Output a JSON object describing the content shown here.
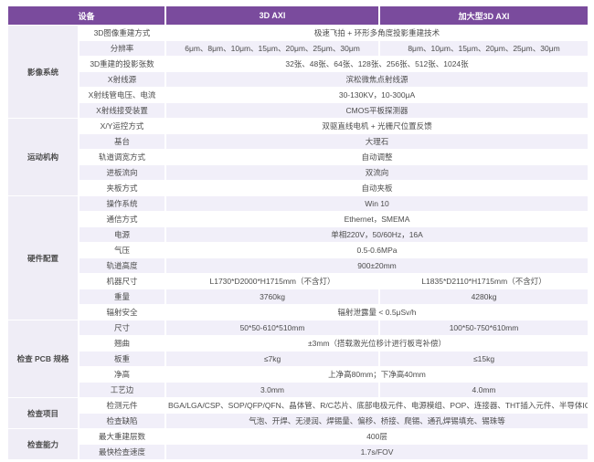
{
  "colors": {
    "header_bg": "#7a4b9d",
    "row_alt_bg": "#f1eff9",
    "category_bg": "#efedf6"
  },
  "table": {
    "header": {
      "col_device": "设备",
      "col_standard": "3D AXI",
      "col_large": "加大型3D AXI"
    },
    "sections": [
      {
        "category": "影像系统",
        "rows": [
          {
            "label": "3D图像重建方式",
            "value": "极速飞拍 + 环形多角度投影重建技术"
          },
          {
            "label": "分辨率",
            "values": [
              "6μm、8μm、10μm、15μm、20μm、25μm、30μm",
              "8μm、10μm、15μm、20μm、25μm、30μm"
            ]
          },
          {
            "label": "3D重建的投影张数",
            "value": "32张、48张、64张、128张、256张、512张、1024张"
          },
          {
            "label": "X射线源",
            "value": "滨松微焦点射线源"
          },
          {
            "label": "X射线管电压、电流",
            "value": "30-130KV，10-300μA"
          },
          {
            "label": "X射线接受装置",
            "value": "CMOS平板探测器"
          }
        ]
      },
      {
        "category": "运动机构",
        "rows": [
          {
            "label": "X/Y运控方式",
            "value": "双驱直线电机 + 光栅尺位置反馈"
          },
          {
            "label": "基台",
            "value": "大理石"
          },
          {
            "label": "轨道调宽方式",
            "value": "自动调整"
          },
          {
            "label": "进板流向",
            "value": "双流向"
          },
          {
            "label": "夹板方式",
            "value": "自动夹板"
          }
        ]
      },
      {
        "category": "硬件配置",
        "rows": [
          {
            "label": "操作系统",
            "value": "Win 10"
          },
          {
            "label": "通信方式",
            "value": "Ethernet，SMEMA"
          },
          {
            "label": "电源",
            "value": "单相220V，50/60Hz，16A"
          },
          {
            "label": "气压",
            "value": "0.5-0.6MPa"
          },
          {
            "label": "轨道高度",
            "value": "900±20mm"
          },
          {
            "label": "机器尺寸",
            "values": [
              "L1730*D2000*H1715mm（不含灯）",
              "L1835*D2110*H1715mm（不含灯）"
            ]
          },
          {
            "label": "重量",
            "values": [
              "3760kg",
              "4280kg"
            ]
          },
          {
            "label": "辐射安全",
            "value": "辐射泄露量 < 0.5μSv/h"
          }
        ]
      },
      {
        "category": "检查 PCB 规格",
        "rows": [
          {
            "label": "尺寸",
            "values": [
              "50*50-610*510mm",
              "100*50-750*610mm"
            ]
          },
          {
            "label": "翘曲",
            "value": "±3mm（搭载激光位移计进行板弯补偿）"
          },
          {
            "label": "板重",
            "values": [
              "≤7kg",
              "≤15kg"
            ]
          },
          {
            "label": "净高",
            "value": "上净高80mm；下净高40mm"
          },
          {
            "label": "工艺边",
            "values": [
              "3.0mm",
              "4.0mm"
            ]
          }
        ]
      },
      {
        "category": "检查项目",
        "rows": [
          {
            "label": "检测元件",
            "value": "BGA/LGA/CSP、SOP/QFP/QFN、晶体管、R/C芯片、底部电极元件、电源模组、POP、连接器、THT插入元件、半导体IGBT焊接层"
          },
          {
            "label": "检查缺陷",
            "value": "气泡、开焊、无浸润、焊锡量、偏移、桥接、爬锡、通孔焊锡填充、锡珠等"
          }
        ]
      },
      {
        "category": "检查能力",
        "rows": [
          {
            "label": "最大重建层数",
            "value": "400层"
          },
          {
            "label": "最快检查速度",
            "value": "1.7s/FOV"
          }
        ]
      }
    ]
  }
}
